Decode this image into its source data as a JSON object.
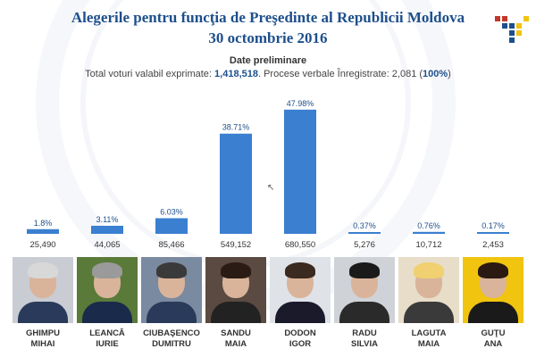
{
  "header": {
    "title_line1": "Alegerile pentru funcţia de Preşedinte al Republicii Moldova",
    "title_line2": "30 octombrie 2016",
    "subtitle": "Date preliminare",
    "summary_prefix": "Total voturi valabil exprimate: ",
    "total_votes": "1,418,518",
    "summary_mid": ". Procese verbale Înregistrate: 2,081 (",
    "reported_pct": "100%",
    "summary_suffix": ")"
  },
  "colors": {
    "title": "#1d4f8c",
    "bar": "#3a7fd0"
  },
  "chart_data": {
    "type": "bar",
    "categories": [
      "GHIMPU MIHAI",
      "LEANCĂ IURIE",
      "CIUBAŞENCO DUMITRU",
      "SANDU MAIA",
      "DODON IGOR",
      "RADU SILVIA",
      "LAGUTA MAIA",
      "GUŢU ANA"
    ],
    "series": [
      {
        "name": "",
        "values": [
          1.8,
          3.11,
          6.03,
          38.71,
          47.98,
          0.37,
          0.76,
          0.17
        ]
      }
    ],
    "pct_labels": [
      "1.8%",
      "3.11%",
      "6.03%",
      "38.71%",
      "47.98%",
      "0.37%",
      "0.76%",
      "0.17%"
    ],
    "votes": [
      "25,490",
      "44,065",
      "85,466",
      "549,152",
      "680,550",
      "5,276",
      "10,712",
      "2,453"
    ],
    "ylim": [
      0,
      50
    ],
    "grid": false,
    "legend": "none"
  },
  "candidates": [
    {
      "line1": "GHIMPU",
      "line2": "MIHAI"
    },
    {
      "line1": "LEANCĂ",
      "line2": "IURIE"
    },
    {
      "line1": "CIUBAŞENCO",
      "line2": "DUMITRU"
    },
    {
      "line1": "SANDU",
      "line2": "MAIA"
    },
    {
      "line1": "DODON",
      "line2": "IGOR"
    },
    {
      "line1": "RADU",
      "line2": "SILVIA"
    },
    {
      "line1": "LAGUTA",
      "line2": "MAIA"
    },
    {
      "line1": "GUŢU",
      "line2": "ANA"
    }
  ]
}
